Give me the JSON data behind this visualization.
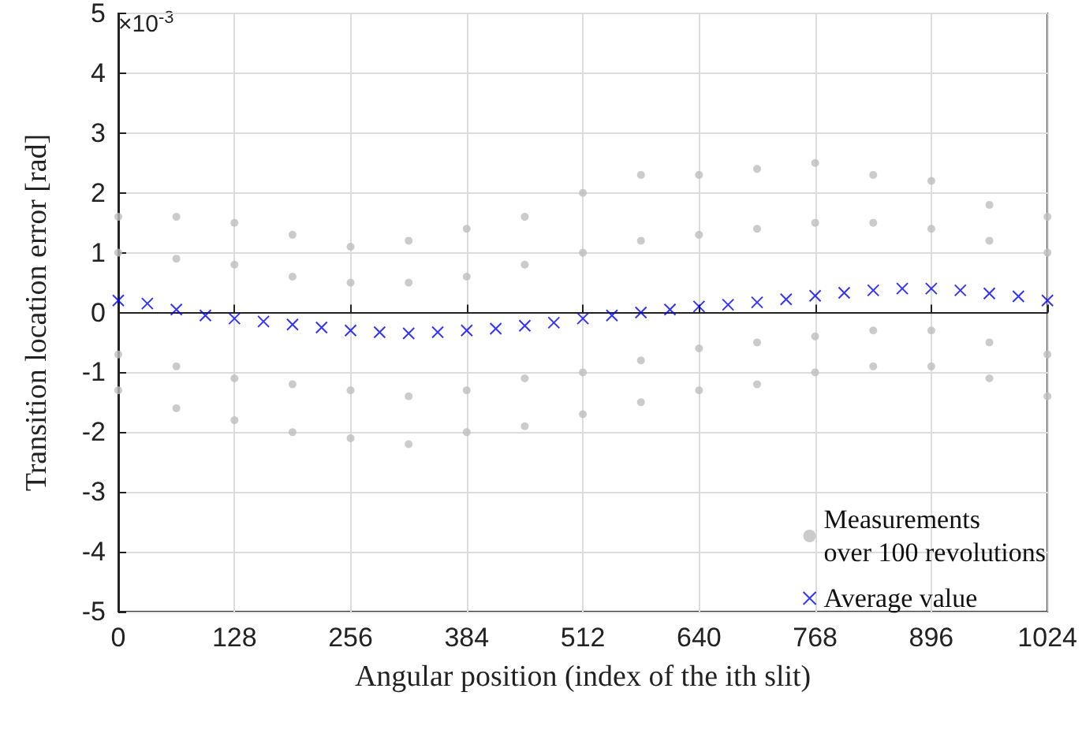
{
  "chart_data": {
    "type": "scatter",
    "xlabel": "Angular position (index of the ith slit)",
    "ylabel": "Transition location error [rad]",
    "annotations": [
      "×10$^{-3}$"
    ],
    "xlim": [
      0,
      1024
    ],
    "xticks": [
      0,
      128,
      256,
      384,
      512,
      640,
      768,
      896,
      1024
    ],
    "ylim": [
      -5,
      5
    ],
    "yticks": [
      -5,
      -4,
      -3,
      -2,
      -1,
      0,
      1,
      2,
      3,
      4,
      5
    ],
    "grid": true,
    "legend": "bottom right",
    "series": [
      {
        "name": "Measurements\nover 100 revolutions",
        "color": "#bebebe",
        "marker": "circle",
        "x": [
          0,
          64,
          128,
          192,
          256,
          320,
          384,
          448,
          512,
          576,
          640,
          704,
          768,
          832,
          896,
          960,
          1024,
          0,
          64,
          128,
          192,
          256,
          320,
          384,
          448,
          512,
          576,
          640,
          704,
          768,
          832,
          896,
          960,
          1024,
          0,
          64,
          128,
          192,
          256,
          320,
          384,
          448,
          512,
          576,
          640,
          704,
          768,
          832,
          896,
          960,
          1024,
          0,
          64,
          128,
          192,
          256,
          320,
          384,
          448,
          512,
          576,
          640,
          704,
          768,
          832,
          896,
          960,
          1024
        ],
        "values": [
          1.6,
          1.6,
          1.5,
          1.3,
          1.1,
          1.2,
          1.4,
          1.6,
          2.0,
          2.3,
          2.3,
          2.4,
          2.5,
          2.3,
          2.2,
          1.8,
          1.6,
          -1.3,
          -1.6,
          -1.8,
          -2.0,
          -2.1,
          -2.2,
          -2.0,
          -1.9,
          -1.7,
          -1.5,
          -1.3,
          -1.2,
          -1.0,
          -0.9,
          -0.9,
          -1.1,
          -1.4,
          1.0,
          0.9,
          0.8,
          0.6,
          0.5,
          0.5,
          0.6,
          0.8,
          1.0,
          1.2,
          1.3,
          1.4,
          1.5,
          1.5,
          1.4,
          1.2,
          1.0,
          -0.7,
          -0.9,
          -1.1,
          -1.2,
          -1.3,
          -1.4,
          -1.3,
          -1.1,
          -1.0,
          -0.8,
          -0.6,
          -0.5,
          -0.4,
          -0.3,
          -0.3,
          -0.5,
          -0.7
        ]
      },
      {
        "name": "Average value",
        "color": "#0000ff",
        "marker": "cross",
        "x": [
          0,
          32,
          64,
          96,
          128,
          160,
          192,
          224,
          256,
          288,
          320,
          352,
          384,
          416,
          448,
          480,
          512,
          544,
          576,
          608,
          640,
          672,
          704,
          736,
          768,
          800,
          832,
          864,
          896,
          928,
          960,
          992,
          1024
        ],
        "values": [
          0.2,
          0.15,
          0.05,
          -0.05,
          -0.1,
          -0.15,
          -0.2,
          -0.25,
          -0.3,
          -0.33,
          -0.35,
          -0.33,
          -0.3,
          -0.27,
          -0.22,
          -0.17,
          -0.1,
          -0.05,
          0.0,
          0.05,
          0.1,
          0.13,
          0.17,
          0.22,
          0.28,
          0.33,
          0.37,
          0.4,
          0.4,
          0.37,
          0.32,
          0.27,
          0.2
        ]
      }
    ]
  }
}
